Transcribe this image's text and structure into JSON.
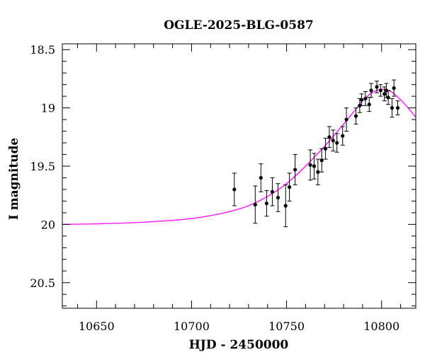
{
  "chart_data": {
    "type": "scatter",
    "title": "OGLE-2025-BLG-0587",
    "xlabel": "HJD - 2450000",
    "ylabel": "I magnitude",
    "xlim": [
      10632,
      10818
    ],
    "ylim": [
      20.72,
      18.45
    ],
    "y_inverted": true,
    "xticks": [
      10650,
      10700,
      10750,
      10800
    ],
    "xtick_labels": [
      "10650",
      "10700",
      "10750",
      "10800"
    ],
    "yticks": [
      18.5,
      19,
      19.5,
      20,
      20.5
    ],
    "ytick_labels": [
      "18.5",
      "19",
      "19.5",
      "20",
      "20.5"
    ],
    "grid": false,
    "series": [
      {
        "kind": "points_with_errorbars",
        "color": "#000000",
        "points": [
          {
            "x": 10722.5,
            "y": 19.7,
            "err": 0.14
          },
          {
            "x": 10733.5,
            "y": 19.83,
            "err": 0.16
          },
          {
            "x": 10736.5,
            "y": 19.6,
            "err": 0.12
          },
          {
            "x": 10739.5,
            "y": 19.82,
            "err": 0.11
          },
          {
            "x": 10742.5,
            "y": 19.72,
            "err": 0.12
          },
          {
            "x": 10745.5,
            "y": 19.77,
            "err": 0.12
          },
          {
            "x": 10749.5,
            "y": 19.84,
            "err": 0.18
          },
          {
            "x": 10751.5,
            "y": 19.68,
            "err": 0.12
          },
          {
            "x": 10754.5,
            "y": 19.53,
            "err": 0.13
          },
          {
            "x": 10762.5,
            "y": 19.49,
            "err": 0.13
          },
          {
            "x": 10764.5,
            "y": 19.5,
            "err": 0.11
          },
          {
            "x": 10766.5,
            "y": 19.55,
            "err": 0.11
          },
          {
            "x": 10768.5,
            "y": 19.45,
            "err": 0.1
          },
          {
            "x": 10770.5,
            "y": 19.35,
            "err": 0.09
          },
          {
            "x": 10772.5,
            "y": 19.25,
            "err": 0.09
          },
          {
            "x": 10774.5,
            "y": 19.28,
            "err": 0.09
          },
          {
            "x": 10776.5,
            "y": 19.3,
            "err": 0.08
          },
          {
            "x": 10779.5,
            "y": 19.24,
            "err": 0.08
          },
          {
            "x": 10781.5,
            "y": 19.1,
            "err": 0.1
          },
          {
            "x": 10786.5,
            "y": 19.07,
            "err": 0.07
          },
          {
            "x": 10788.5,
            "y": 18.98,
            "err": 0.06
          },
          {
            "x": 10789.5,
            "y": 18.93,
            "err": 0.05
          },
          {
            "x": 10791.5,
            "y": 18.92,
            "err": 0.06
          },
          {
            "x": 10793.5,
            "y": 18.97,
            "err": 0.06
          },
          {
            "x": 10794.5,
            "y": 18.85,
            "err": 0.06
          },
          {
            "x": 10797.5,
            "y": 18.82,
            "err": 0.05
          },
          {
            "x": 10799.5,
            "y": 18.85,
            "err": 0.05
          },
          {
            "x": 10801.5,
            "y": 18.88,
            "err": 0.06
          },
          {
            "x": 10802.5,
            "y": 18.85,
            "err": 0.06
          },
          {
            "x": 10803.5,
            "y": 18.91,
            "err": 0.06
          },
          {
            "x": 10805.5,
            "y": 19.0,
            "err": 0.08
          },
          {
            "x": 10806.5,
            "y": 18.83,
            "err": 0.07
          },
          {
            "x": 10808.5,
            "y": 19.0,
            "err": 0.06
          }
        ]
      },
      {
        "kind": "model_curve",
        "color": "#ff00ff",
        "x": [
          10632,
          10650,
          10670,
          10690,
          10700,
          10710,
          10720,
          10730,
          10740,
          10750,
          10760,
          10770,
          10780,
          10785,
          10790,
          10795,
          10800,
          10805,
          10810,
          10815,
          10818
        ],
        "y": [
          20.0,
          19.995,
          19.985,
          19.965,
          19.95,
          19.925,
          19.89,
          19.84,
          19.76,
          19.65,
          19.5,
          19.33,
          19.14,
          19.04,
          18.94,
          18.87,
          18.84,
          18.86,
          18.93,
          19.02,
          19.08
        ]
      }
    ]
  }
}
